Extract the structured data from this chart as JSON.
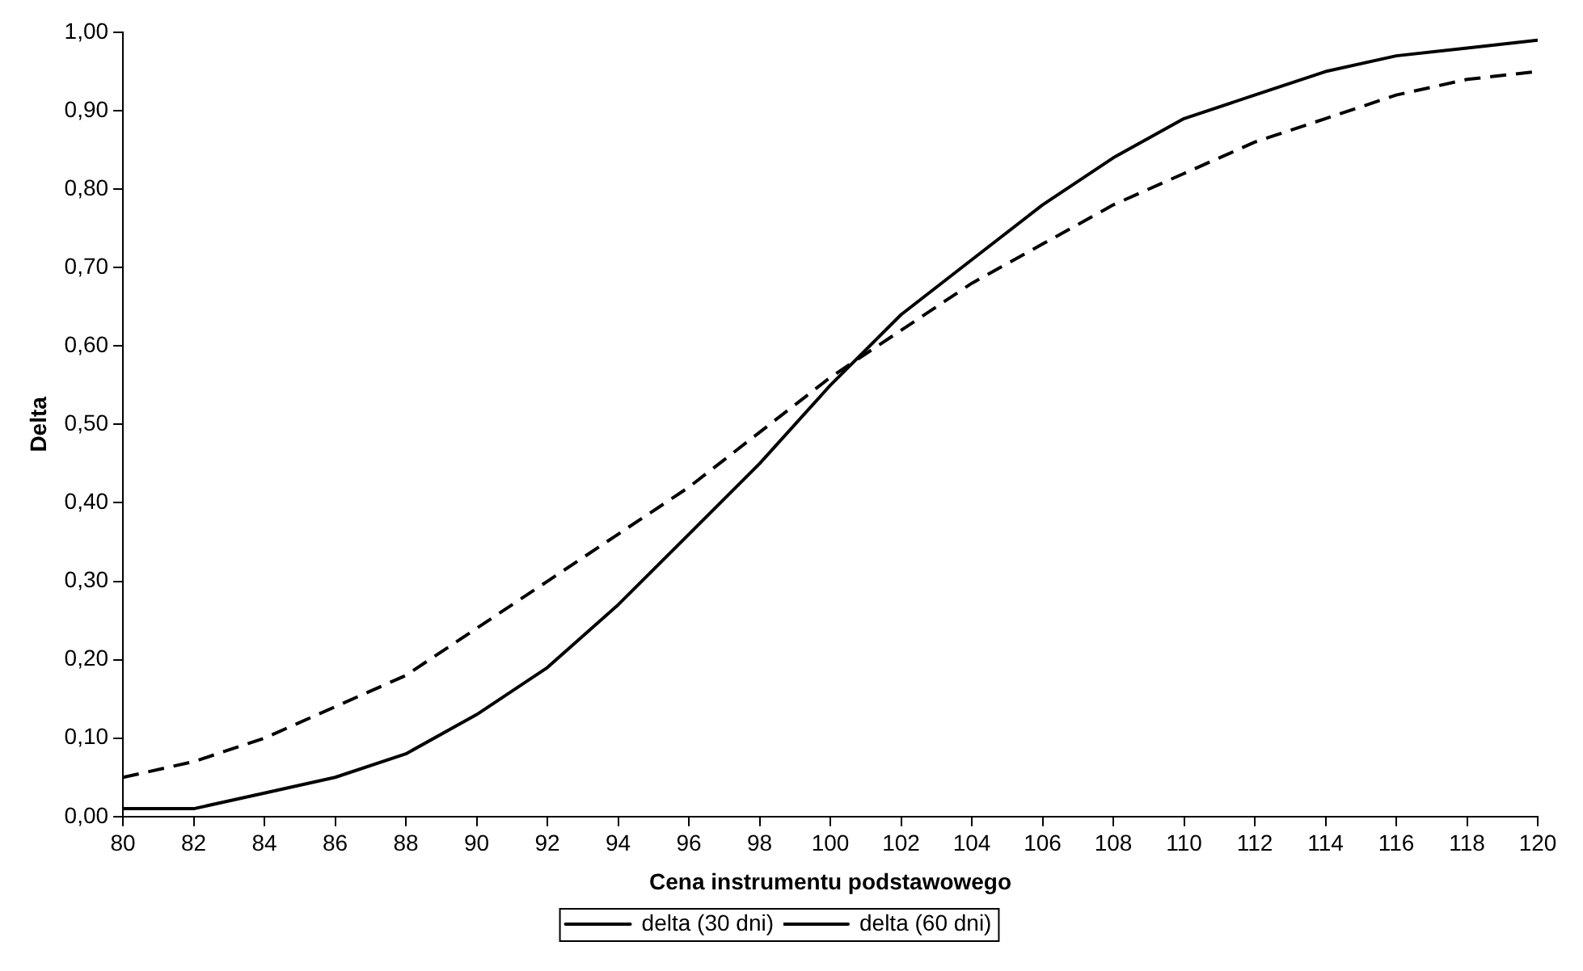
{
  "chart_data": {
    "type": "line",
    "xlabel": "Cena instrumentu podstawowego",
    "ylabel": "Delta",
    "x": [
      80,
      82,
      84,
      86,
      88,
      90,
      92,
      94,
      96,
      98,
      100,
      102,
      104,
      106,
      108,
      110,
      112,
      114,
      116,
      118,
      120
    ],
    "series": [
      {
        "name": "delta (30 dni)",
        "color": "#000000",
        "line_style": "solid",
        "values": [
          0.01,
          0.01,
          0.03,
          0.05,
          0.08,
          0.13,
          0.19,
          0.27,
          0.36,
          0.45,
          0.55,
          0.64,
          0.71,
          0.78,
          0.84,
          0.89,
          0.92,
          0.95,
          0.97,
          0.98,
          0.99
        ]
      },
      {
        "name": "delta (60 dni)",
        "color": "#000000",
        "line_style": "dashed",
        "values": [
          0.05,
          0.07,
          0.1,
          0.14,
          0.18,
          0.24,
          0.3,
          0.36,
          0.42,
          0.49,
          0.56,
          0.62,
          0.68,
          0.73,
          0.78,
          0.82,
          0.86,
          0.89,
          0.92,
          0.94,
          0.95
        ]
      }
    ],
    "xlim": [
      80,
      120
    ],
    "xticks": [
      80,
      82,
      84,
      86,
      88,
      90,
      92,
      94,
      96,
      98,
      100,
      102,
      104,
      106,
      108,
      110,
      112,
      114,
      116,
      118,
      120
    ],
    "ylim": [
      0,
      1
    ],
    "yticks": [
      {
        "value": 0,
        "label": "0,00"
      },
      {
        "value": 0.1,
        "label": "0,10"
      },
      {
        "value": 0.2,
        "label": "0,20"
      },
      {
        "value": 0.3,
        "label": "0,30"
      },
      {
        "value": 0.4,
        "label": "0,40"
      },
      {
        "value": 0.5,
        "label": "0,50"
      },
      {
        "value": 0.6,
        "label": "0,60"
      },
      {
        "value": 0.7,
        "label": "0,70"
      },
      {
        "value": 0.8,
        "label": "0,80"
      },
      {
        "value": 0.9,
        "label": "0,90"
      },
      {
        "value": 1,
        "label": "1,00"
      }
    ],
    "grid": false,
    "legend": "bottom",
    "marker": "none"
  }
}
